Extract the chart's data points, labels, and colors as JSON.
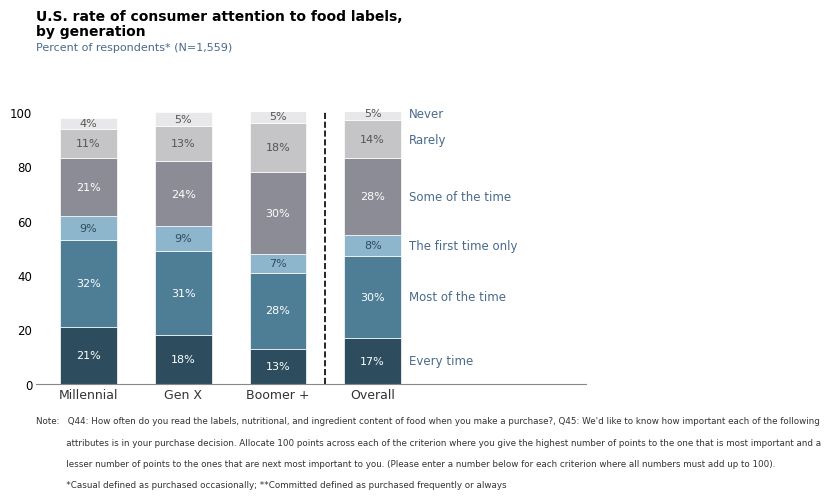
{
  "title_line1": "U.S. rate of consumer attention to food labels,",
  "title_line2": "by generation",
  "subtitle": "Percent of respondents* (N=1,559)",
  "categories": [
    "Millennial",
    "Gen X",
    "Boomer +",
    "Overall"
  ],
  "segments": [
    {
      "label": "Every time",
      "values": [
        21,
        18,
        13,
        17
      ],
      "color": "#2d4d5e"
    },
    {
      "label": "Most of the time",
      "values": [
        32,
        31,
        28,
        30
      ],
      "color": "#4e7d96"
    },
    {
      "label": "The first time only",
      "values": [
        9,
        9,
        7,
        8
      ],
      "color": "#8db5cc"
    },
    {
      "label": "Some of the time",
      "values": [
        21,
        24,
        30,
        28
      ],
      "color": "#8c8c96"
    },
    {
      "label": "Rarely",
      "values": [
        11,
        13,
        18,
        14
      ],
      "color": "#c5c5c8"
    },
    {
      "label": "Never",
      "values": [
        4,
        5,
        5,
        5
      ],
      "color": "#e8e8ea"
    }
  ],
  "label_text_colors": {
    "Every time": "white",
    "Most of the time": "white",
    "The first time only": "#2d4d5e",
    "Some of the time": "white",
    "Rarely": "#555555",
    "Never": "#555555"
  },
  "right_label_color": "#4a6a8a",
  "bar_width": 0.6,
  "ylim": [
    0,
    100
  ],
  "yticks": [
    0,
    20,
    40,
    60,
    80,
    100
  ],
  "note_line1": "Note:   Q44: How often do you read the labels, nutritional, and ingredient content of food when you make a purchase?, Q45: We'd like to know how important each of the following",
  "note_line2": "           attributes is in your purchase decision. Allocate 100 points across each of the criterion where you give the highest number of points to the one that is most important and a",
  "note_line3": "           lesser number of points to the ones that are next most important to you. (Please enter a number below for each criterion where all numbers must add up to 100).",
  "note_line4": "           *Casual defined as purchased occasionally; **Committed defined as purchased frequently or always"
}
